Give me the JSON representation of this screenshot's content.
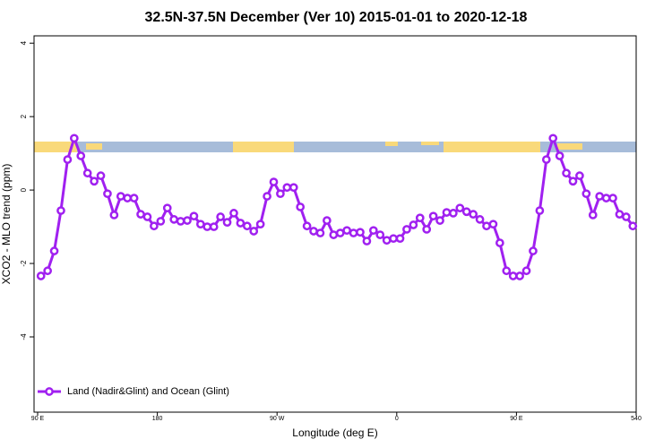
{
  "chart_data": {
    "type": "line",
    "title": "32.5N-37.5N December (Ver 10)   2015-01-01 to 2020-12-18",
    "x_label": "Longitude (deg E)",
    "y_label": "XCO2 - MLO trend (ppm)",
    "x": [
      92.5,
      97.5,
      102.5,
      107.5,
      112.5,
      117.5,
      122.5,
      127.5,
      132.5,
      137.5,
      142.5,
      147.5,
      152.5,
      157.5,
      162.5,
      167.5,
      172.5,
      177.5,
      182.5,
      187.5,
      192.5,
      197.5,
      202.5,
      207.5,
      212.5,
      217.5,
      222.5,
      227.5,
      232.5,
      237.5,
      242.5,
      247.5,
      252.5,
      257.5,
      262.5,
      267.5,
      272.5,
      277.5,
      282.5,
      287.5,
      292.5,
      297.5,
      302.5,
      307.5,
      312.5,
      317.5,
      322.5,
      327.5,
      332.5,
      337.5,
      342.5,
      347.5,
      352.5,
      357.5,
      362.5,
      367.5,
      372.5,
      377.5,
      382.5,
      387.5,
      392.5,
      397.5,
      402.5,
      407.5,
      412.5,
      417.5,
      422.5,
      427.5,
      432.5,
      437.5,
      442.5,
      447.5,
      452.5,
      457.5,
      462.5,
      467.5,
      472.5,
      477.5,
      482.5,
      487.5,
      492.5,
      497.5,
      502.5,
      507.5,
      512.5,
      517.5,
      522.5,
      527.5,
      532.5,
      537.5
    ],
    "series": [
      {
        "name": "Land (Nadir&Glint) and Ocean (Glint)",
        "color": "#a020f0",
        "values": [
          -2.34,
          -2.2,
          -1.66,
          -0.56,
          0.83,
          1.41,
          0.93,
          0.46,
          0.24,
          0.39,
          -0.1,
          -0.68,
          -0.17,
          -0.22,
          -0.22,
          -0.66,
          -0.73,
          -0.98,
          -0.85,
          -0.49,
          -0.8,
          -0.85,
          -0.83,
          -0.71,
          -0.93,
          -1.0,
          -1.0,
          -0.73,
          -0.88,
          -0.63,
          -0.9,
          -0.98,
          -1.12,
          -0.93,
          -0.17,
          0.22,
          -0.1,
          0.07,
          0.07,
          -0.46,
          -0.98,
          -1.12,
          -1.17,
          -0.83,
          -1.22,
          -1.17,
          -1.1,
          -1.17,
          -1.15,
          -1.39,
          -1.1,
          -1.22,
          -1.37,
          -1.32,
          -1.32,
          -1.07,
          -0.95,
          -0.76,
          -1.07,
          -0.71,
          -0.83,
          -0.61,
          -0.63,
          -0.49,
          -0.59,
          -0.66,
          -0.8,
          -0.98,
          -0.93,
          -1.44,
          -2.2,
          -2.34,
          -2.34,
          -2.2,
          -1.66,
          -0.56,
          0.83,
          1.41,
          0.93,
          0.46,
          0.24,
          0.39,
          -0.1,
          -0.68,
          -0.17,
          -0.22,
          -0.22,
          -0.66,
          -0.73,
          -0.98
        ]
      }
    ],
    "xlim": [
      87.3,
      540
    ],
    "xticks": [
      {
        "value": 90,
        "label": "90 E"
      },
      180,
      {
        "value": 270,
        "label": "90 W"
      },
      {
        "value": 360,
        "label": "0"
      },
      {
        "value": 450,
        "label": "90 E"
      },
      540
    ],
    "ylim": [
      -6.05,
      4.2
    ],
    "yticks": [
      -4,
      -2,
      0,
      2,
      4
    ],
    "legend": "bottom-left"
  }
}
